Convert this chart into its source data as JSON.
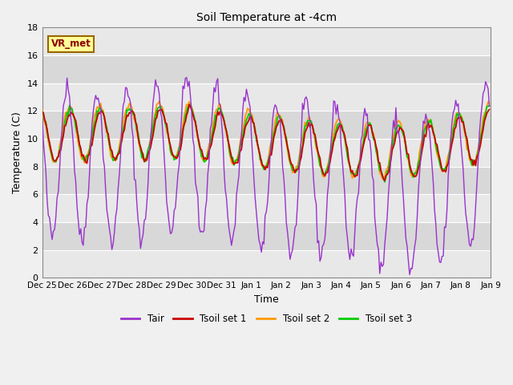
{
  "title": "Soil Temperature at -4cm",
  "xlabel": "Time",
  "ylabel": "Temperature (C)",
  "ylim": [
    0,
    18
  ],
  "yticks": [
    0,
    2,
    4,
    6,
    8,
    10,
    12,
    14,
    16,
    18
  ],
  "annotation_text": "VR_met",
  "fig_bg_color": "#f0f0f0",
  "plot_bg_color": "#d8d8d8",
  "band_colors": [
    "#d8d8d8",
    "#e8e8e8"
  ],
  "colors": {
    "Tair": "#9933cc",
    "Tsoil1": "#cc0000",
    "Tsoil2": "#ff9900",
    "Tsoil3": "#00cc00"
  },
  "legend_labels": [
    "Tair",
    "Tsoil set 1",
    "Tsoil set 2",
    "Tsoil set 3"
  ],
  "x_tick_labels": [
    "Dec 25",
    "Dec 26",
    "Dec 27",
    "Dec 28",
    "Dec 29",
    "Dec 30",
    "Dec 31",
    "Jan 1",
    "Jan 2",
    "Jan 3",
    "Jan 4",
    "Jan 5",
    "Jan 6",
    "Jan 7",
    "Jan 8",
    "Jan 9"
  ]
}
